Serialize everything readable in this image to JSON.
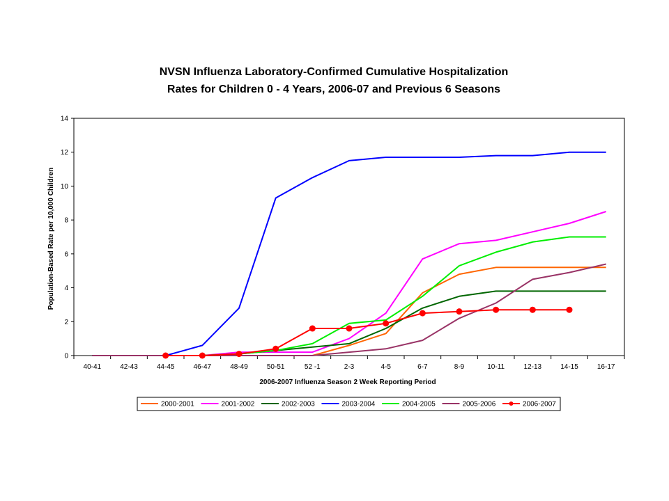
{
  "chart_data": {
    "type": "line",
    "title_lines": [
      "NVSN Influenza Laboratory-Confirmed Cumulative Hospitalization",
      "Rates for Children 0 - 4 Years, 2006-07 and Previous 6 Seasons"
    ],
    "xlabel": "2006-2007 Influenza Season 2 Week Reporting Period",
    "ylabel": "Population-Based Rate per 10,000 Children",
    "ylim": [
      0,
      14
    ],
    "yticks": [
      0,
      2,
      4,
      6,
      8,
      10,
      12,
      14
    ],
    "categories": [
      "40-41",
      "42-43",
      "44-45",
      "46-47",
      "48-49",
      "50-51",
      "52 -1",
      "2-3",
      "4-5",
      "6-7",
      "8-9",
      "10-11",
      "12-13",
      "14-15",
      "16-17"
    ],
    "legend_position": "bottom",
    "grid": false,
    "series": [
      {
        "name": "2000-2001",
        "color": "#ff6600",
        "marker": false,
        "values": [
          0,
          0,
          0,
          0,
          0,
          0,
          0,
          0.6,
          1.3,
          3.7,
          4.8,
          5.2,
          5.2,
          5.2,
          5.2
        ]
      },
      {
        "name": "2001-2002",
        "color": "#ff00ff",
        "marker": false,
        "values": [
          0,
          0,
          0,
          0,
          0.2,
          0.2,
          0.2,
          1.0,
          2.5,
          5.7,
          6.6,
          6.8,
          7.3,
          7.8,
          8.5
        ]
      },
      {
        "name": "2002-2003",
        "color": "#006600",
        "marker": false,
        "values": [
          0,
          0,
          0,
          0,
          0.1,
          0.3,
          0.5,
          0.7,
          1.6,
          2.8,
          3.5,
          3.8,
          3.8,
          3.8,
          3.8
        ]
      },
      {
        "name": "2003-2004",
        "color": "#0000ff",
        "marker": false,
        "values": [
          0,
          0,
          0,
          0.6,
          2.8,
          9.3,
          10.5,
          11.5,
          11.7,
          11.7,
          11.7,
          11.8,
          11.8,
          12.0,
          12.0
        ]
      },
      {
        "name": "2004-2005",
        "color": "#00ee00",
        "marker": false,
        "values": [
          0,
          0,
          0,
          0,
          0.1,
          0.3,
          0.7,
          1.9,
          2.1,
          3.5,
          5.3,
          6.1,
          6.7,
          7.0,
          7.0
        ]
      },
      {
        "name": "2005-2006",
        "color": "#993366",
        "marker": false,
        "values": [
          0,
          0,
          0,
          0,
          0,
          0,
          0,
          0.2,
          0.4,
          0.9,
          2.2,
          3.1,
          4.5,
          4.9,
          5.4
        ]
      },
      {
        "name": "2006-2007",
        "color": "#ff0000",
        "marker": true,
        "values": [
          null,
          null,
          0,
          0,
          0.1,
          0.4,
          1.6,
          1.6,
          1.9,
          2.5,
          2.6,
          2.7,
          2.7,
          2.7,
          null
        ]
      }
    ]
  }
}
